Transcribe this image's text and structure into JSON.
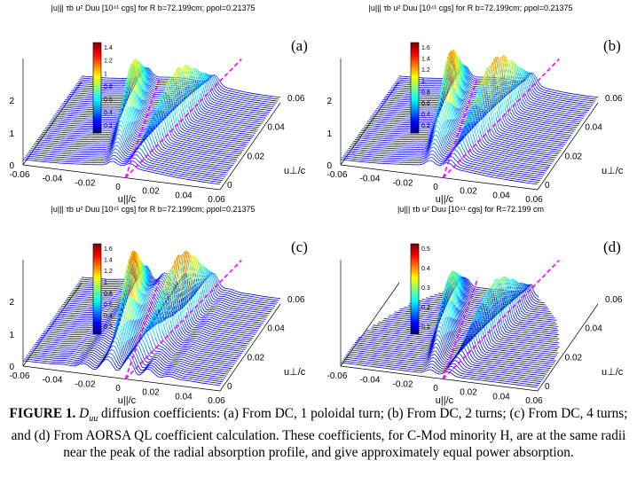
{
  "caption": {
    "label": "FIGURE 1.",
    "symbol": "D",
    "symbol_sub": "uu",
    "text": "diffusion coefficients: (a) From DC, 1 poloidal turn; (b) From DC, 2 turns; (c) From DC, 4 turns;  and (d) From AORSA QL coefficient calculation.  These coefficients, for C-Mod minority H, are at the same radii near the peak of the radial absorption profile, and give approximately equal power absorption."
  },
  "panels": [
    {
      "id": "a",
      "label": "(a)",
      "title": "|u||| τb u² Duu [10⁴¹ cgs]    for R b=72.199cm;  ρpol=0.21375",
      "colorbar_ticks": [
        "1.4",
        "1.2",
        "1",
        "0.8",
        "0.6",
        "0.4",
        "0.2"
      ],
      "z_ticks": [
        "2",
        "1",
        "0"
      ],
      "x_ticks": [
        "-0.06",
        "-0.04",
        "-0.02",
        "0",
        "0.02",
        "0.04",
        "0.06"
      ],
      "y_ticks": [
        "0",
        "0.02",
        "0.04",
        "0.06"
      ],
      "x_label": "u||/c",
      "y_label": "u⊥/c"
    },
    {
      "id": "b",
      "label": "(b)",
      "title": "|u||| τb u² Duu [10⁴¹ cgs]    for R b=72.199cm;  ρpol=0.21375",
      "colorbar_ticks": [
        "1.6",
        "1.4",
        "1.2",
        "1",
        "0.8",
        "0.6",
        "0.4",
        "0.2"
      ],
      "z_ticks": [
        "2",
        "1",
        "0"
      ],
      "x_ticks": [
        "-0.06",
        "-0.04",
        "-0.02",
        "0",
        "0.02",
        "0.04",
        "0.06"
      ],
      "y_ticks": [
        "0",
        "0.02",
        "0.04",
        "0.06"
      ],
      "x_label": "u||/c",
      "y_label": "u⊥/c"
    },
    {
      "id": "c",
      "label": "(c)",
      "title": "|u||| τb u² Duu [10⁴¹ cgs]    for R b=72.199cm;  ρpol=0.21375",
      "colorbar_ticks": [
        "1.6",
        "1.4",
        "1.2",
        "1",
        "0.8",
        "0.6",
        "0.4",
        "0.2"
      ],
      "z_ticks": [
        "2",
        "1",
        "0"
      ],
      "x_ticks": [
        "-0.06",
        "-0.04",
        "-0.02",
        "0",
        "0.02",
        "0.04",
        "0.06"
      ],
      "y_ticks": [
        "0",
        "0.02",
        "0.04",
        "0.06"
      ],
      "x_label": "u||/c",
      "y_label": "u⊥/c"
    },
    {
      "id": "d",
      "label": "(d)",
      "title": "|u||| τb u² Duu  [10⁴¹ cgs]    for R=72.199 cm",
      "colorbar_ticks": [
        "0.5",
        "0.4",
        "0.3",
        "0.2",
        "0.1"
      ],
      "z_ticks": [],
      "x_ticks": [
        "-0.06",
        "-0.04",
        "-0.02",
        "0",
        "0.02",
        "0.04",
        "0.06"
      ],
      "y_ticks": [
        "0",
        "0.02",
        "0.04",
        "0.06"
      ],
      "x_label": "u||/c",
      "y_label": "u⊥/c"
    }
  ]
}
